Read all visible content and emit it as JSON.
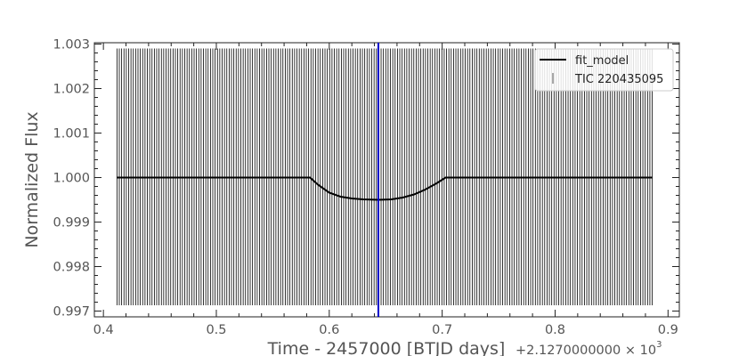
{
  "chart_data": {
    "type": "line",
    "xlabel": "Time - 2457000 [BTJD days]",
    "x_offset_label": "+2.1270000000 × 10",
    "x_offset_exponent": "3",
    "ylabel": "Normalized Flux",
    "xlim": [
      0.392,
      0.91
    ],
    "ylim": [
      0.99687,
      1.00303
    ],
    "x_ticks": [
      0.4,
      0.5,
      0.6,
      0.7,
      0.8,
      0.9
    ],
    "x_tick_labels": [
      "0.4",
      "0.5",
      "0.6",
      "0.7",
      "0.8",
      "0.9"
    ],
    "y_ticks": [
      0.997,
      0.998,
      0.999,
      1.0,
      1.001,
      1.002,
      1.003
    ],
    "y_tick_labels": [
      "0.997",
      "0.998",
      "0.999",
      "1.000",
      "1.001",
      "1.002",
      "1.003"
    ],
    "series": [
      {
        "name": "fit_model",
        "color": "#000000",
        "style": "line",
        "x": [
          0.412,
          0.583,
          0.59,
          0.6,
          0.61,
          0.62,
          0.63,
          0.6435,
          0.655,
          0.665,
          0.675,
          0.685,
          0.695,
          0.703,
          0.886
        ],
        "y": [
          1.0,
          1.0,
          0.99984,
          0.99966,
          0.99957,
          0.99953,
          0.99951,
          0.9995,
          0.99951,
          0.99955,
          0.99962,
          0.99973,
          0.99987,
          1.0,
          1.0
        ]
      },
      {
        "name": "TIC 220435095",
        "color": "#000000",
        "style": "error-bars",
        "x_start": 0.412,
        "x_end": 0.886,
        "count": 230,
        "y_low": 0.99713,
        "y_high": 1.0029
      }
    ],
    "markers": [
      {
        "type": "vline",
        "x": 0.6435,
        "color": "#0000cc"
      }
    ],
    "legend_position": "top-right",
    "grid": false
  }
}
